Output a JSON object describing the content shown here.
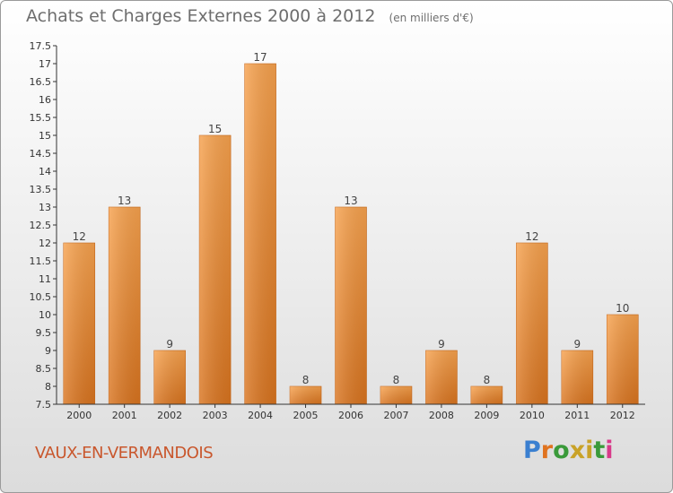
{
  "header": {
    "title": "Achats et Charges Externes 2000 à 2012",
    "subtitle": "(en milliers d'€)"
  },
  "footer": {
    "commune": "VAUX-EN-VERMANDOIS",
    "logo_letters": [
      "P",
      "r",
      "o",
      "x",
      "i",
      "t",
      "i"
    ],
    "logo_colors": [
      "#3a7fd0",
      "#e0731f",
      "#3a9a3a",
      "#c9a227",
      "#c9a227",
      "#3a9a3a",
      "#d83a8a"
    ]
  },
  "colors": {
    "bar_light": "#f7a24e",
    "bar_dark": "#d9741f",
    "axis": "#333333"
  },
  "chart_data": {
    "type": "bar",
    "title": "Achats et Charges Externes 2000 à 2012",
    "subtitle": "(en milliers d'€)",
    "categories": [
      "2000",
      "2001",
      "2002",
      "2003",
      "2004",
      "2005",
      "2006",
      "2007",
      "2008",
      "2009",
      "2010",
      "2011",
      "2012"
    ],
    "values": [
      12,
      13,
      9,
      15,
      17,
      8,
      13,
      8,
      9,
      8,
      12,
      9,
      10
    ],
    "ylim": [
      7.5,
      17.5
    ],
    "yticks": [
      "7.5",
      "8",
      "8.5",
      "9",
      "9.5",
      "10",
      "10.5",
      "11",
      "11.5",
      "12",
      "12.5",
      "13",
      "13.5",
      "14",
      "14.5",
      "15",
      "15.5",
      "16",
      "16.5",
      "17",
      "17.5"
    ],
    "grid": false,
    "xlabel": "",
    "ylabel": ""
  }
}
